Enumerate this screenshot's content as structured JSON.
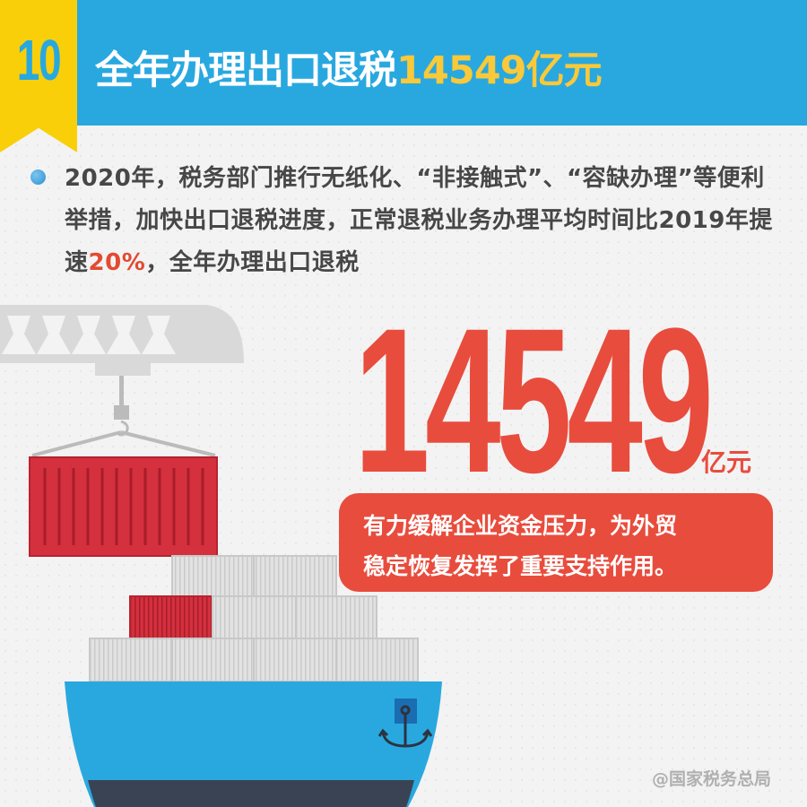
{
  "header": {
    "number": "10",
    "title_prefix": "全年办理出口退税",
    "title_highlight": "14549亿元"
  },
  "body": {
    "text_before": "2020年，税务部门推行无纸化、“非接触式”、“容缺办理”等便利举措，加快出口退税进度，正常退税业务办理平均时间比2019年提速",
    "highlight": "20%",
    "text_after": "，全年办理出口退税"
  },
  "figure": {
    "value": "14549",
    "unit": "亿元"
  },
  "callout": {
    "line1": "有力缓解企业资金压力，为外贸",
    "line2": "稳定恢复发挥了重要支持作用。"
  },
  "watermark": "@国家税务总局",
  "colors": {
    "header_blue": "#29a8e0",
    "ribbon_yellow": "#f9cf0a",
    "highlight_yellow": "#f9c93a",
    "accent_red": "#e84c3d",
    "container_red": "#d4303e",
    "ship_dark": "#3a4354"
  },
  "illustration": {
    "icons": [
      "crane-icon",
      "shipping-container-icon",
      "cargo-ship-icon",
      "anchor-icon"
    ]
  }
}
